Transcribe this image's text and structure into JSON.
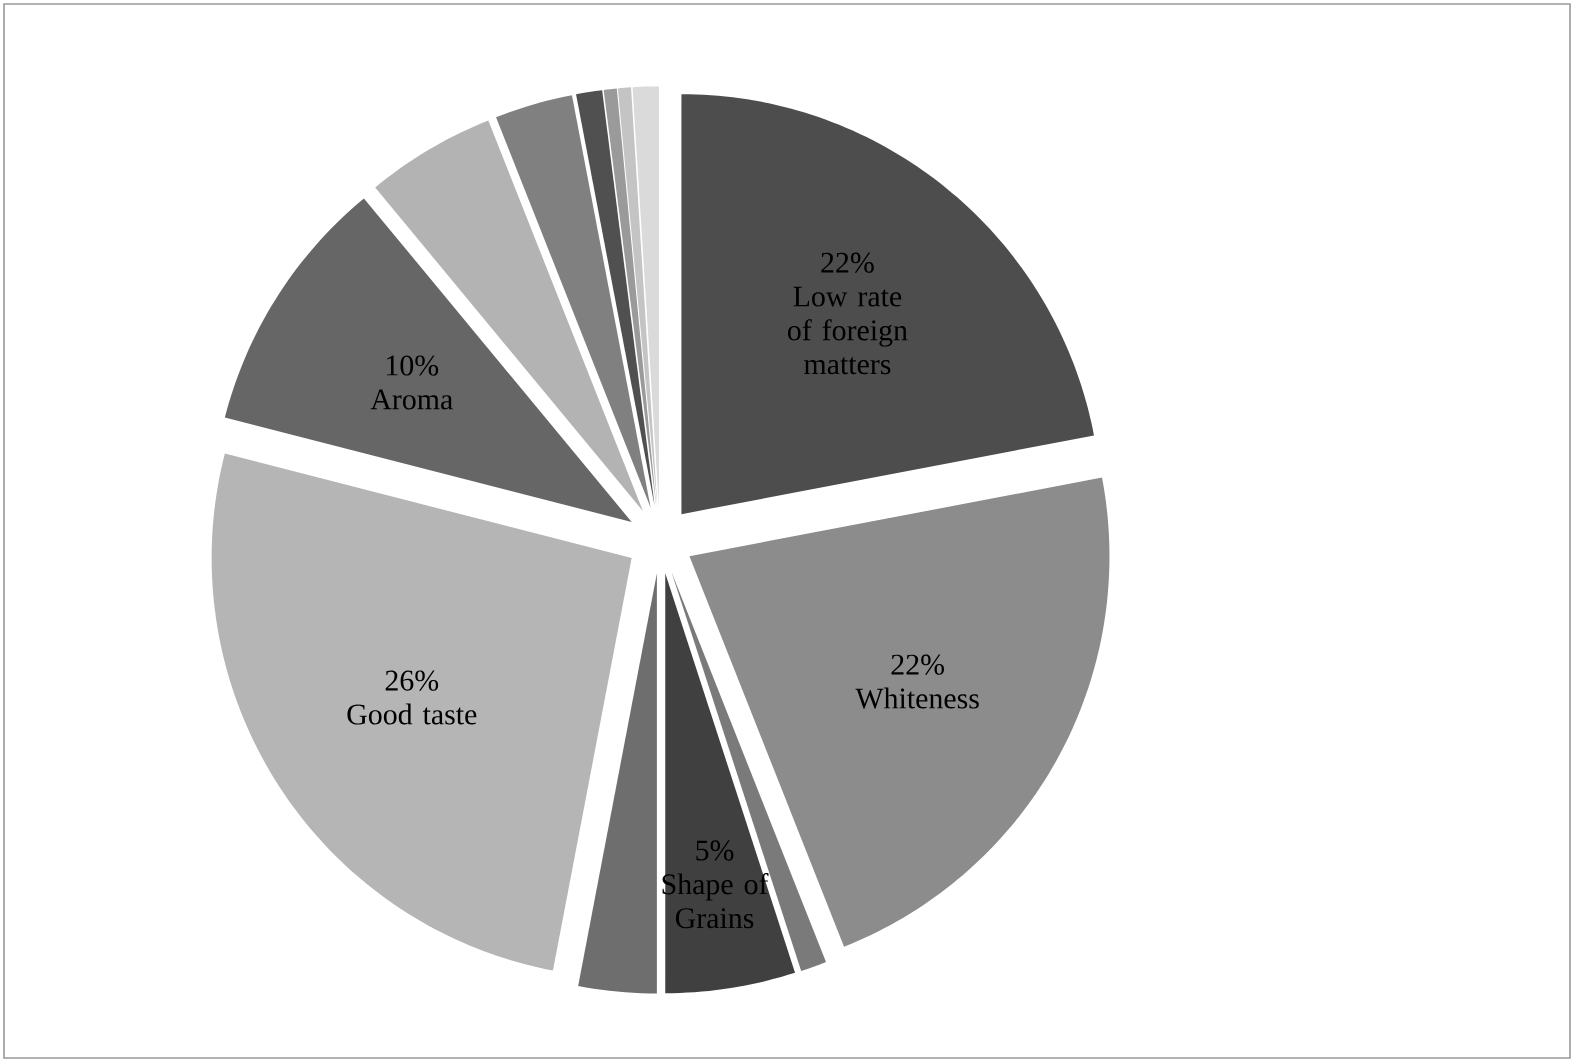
{
  "chart_data": {
    "type": "pie",
    "categories": [
      "Low rate of foreign matters",
      "Whiteness",
      null,
      "Shape of Grains",
      null,
      "Good taste",
      "Aroma",
      null,
      null,
      null,
      null,
      null,
      null
    ],
    "values": [
      22,
      22,
      1,
      5,
      3,
      26,
      10,
      5,
      3,
      1,
      0.5,
      0.5,
      1
    ],
    "value_labels": [
      "22%",
      "22%",
      null,
      "5%",
      null,
      "26%",
      "10%",
      null,
      null,
      null,
      null,
      null,
      null
    ],
    "colors": [
      "#4d4d4d",
      "#8c8c8c",
      "#7a7a7a",
      "#404040",
      "#6e6e6e",
      "#b5b5b5",
      "#666666",
      "#b3b3b3",
      "#808080",
      "#505050",
      "#9a9a9a",
      "#c4c4c4",
      "#dadada"
    ]
  }
}
